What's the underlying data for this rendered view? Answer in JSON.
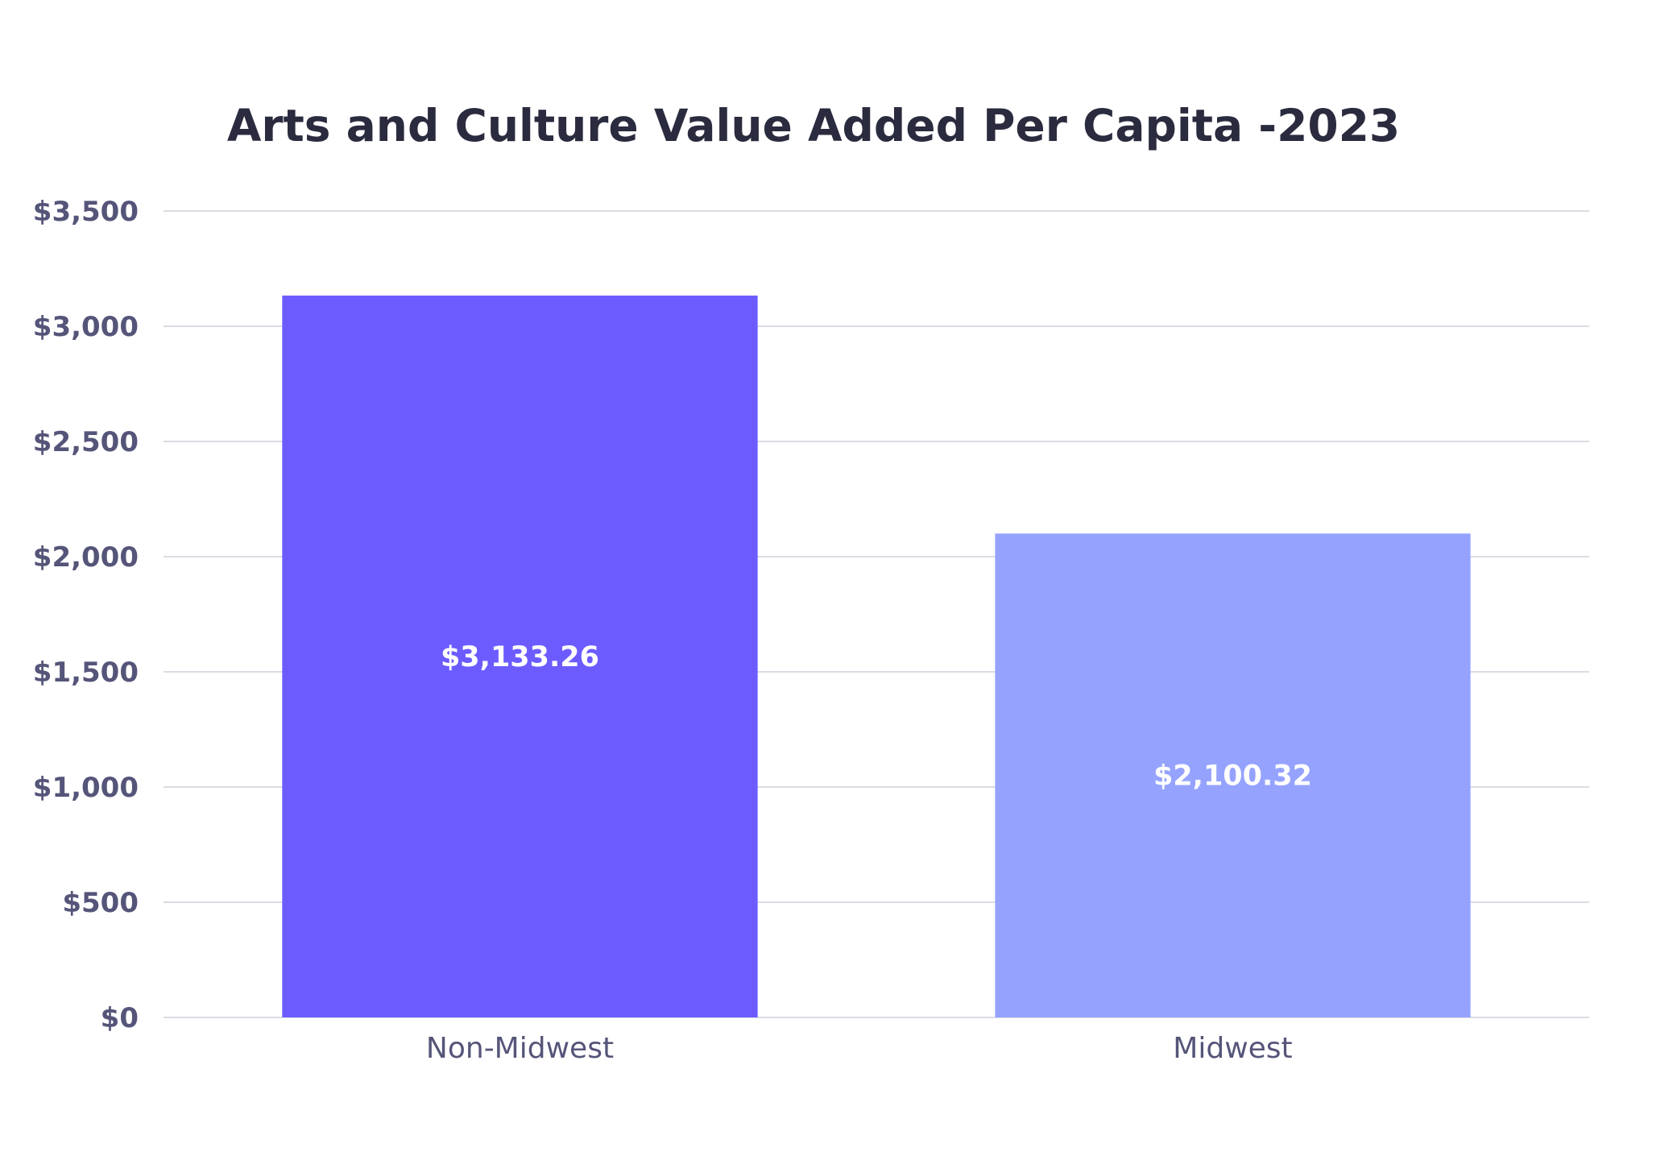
{
  "chart_data": {
    "type": "bar",
    "title": "Arts and Culture Value Added Per Capita -2023",
    "xlabel": "",
    "ylabel": "",
    "categories": [
      "Non-Midwest",
      "Midwest"
    ],
    "values": [
      3133.26,
      2100.32
    ],
    "data_labels": [
      "$3,133.26",
      "$2,100.32"
    ],
    "bar_colors": [
      "#6c5cff",
      "#95a3ff"
    ],
    "ylim": [
      0,
      3500
    ],
    "yticks": [
      0,
      500,
      1000,
      1500,
      2000,
      2500,
      3000,
      3500
    ],
    "ytick_labels": [
      "$0",
      "$500",
      "$1,000",
      "$1,500",
      "$2,000",
      "$2,500",
      "$3,000",
      "$3,500"
    ],
    "grid": true,
    "legend": "none"
  }
}
